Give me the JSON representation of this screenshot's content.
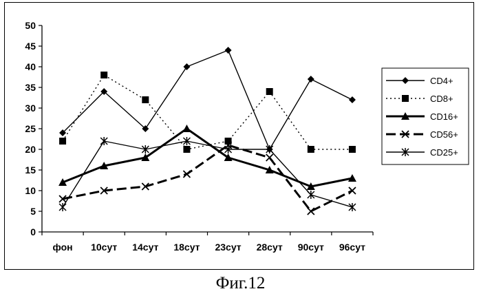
{
  "chart_data": {
    "type": "line",
    "categories": [
      "фон",
      "10сут",
      "14сут",
      "18сут",
      "23сут",
      "28сут",
      "90сут",
      "96сут"
    ],
    "ylim": [
      0,
      50
    ],
    "yticks": [
      0,
      5,
      10,
      15,
      20,
      25,
      30,
      35,
      40,
      45,
      50
    ],
    "grid": false,
    "legend_position": "right",
    "series": [
      {
        "name": "CD4+",
        "values": [
          24,
          34,
          25,
          40,
          44,
          20,
          37,
          32
        ],
        "marker": "diamond",
        "dash": "solid",
        "weight": "thin"
      },
      {
        "name": "CD8+",
        "values": [
          22,
          38,
          32,
          20,
          22,
          34,
          20,
          20
        ],
        "marker": "square",
        "dash": "dotted",
        "weight": "thin"
      },
      {
        "name": "CD16+",
        "values": [
          12,
          16,
          18,
          25,
          18,
          15,
          11,
          13
        ],
        "marker": "triangle",
        "dash": "solid",
        "weight": "thick"
      },
      {
        "name": "CD56+",
        "values": [
          8,
          10,
          11,
          14,
          21,
          18,
          5,
          10
        ],
        "marker": "x",
        "dash": "dashed",
        "weight": "thick"
      },
      {
        "name": "CD25+",
        "values": [
          6,
          22,
          20,
          22,
          20,
          20,
          9,
          6
        ],
        "marker": "star",
        "dash": "solid",
        "weight": "thin"
      }
    ]
  },
  "caption": "Фиг.12"
}
